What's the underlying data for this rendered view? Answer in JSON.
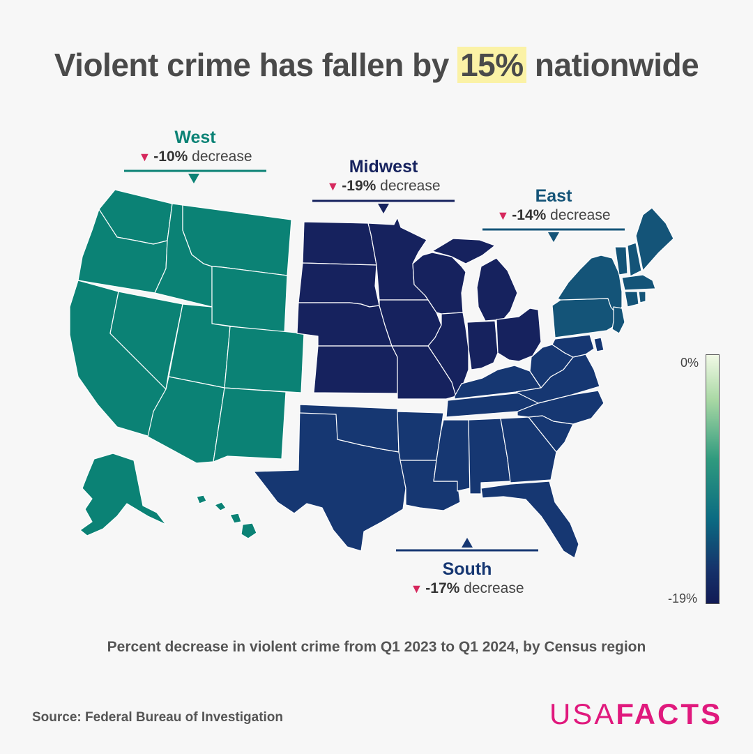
{
  "title": {
    "before": "Violent crime has fallen by ",
    "highlight": "15%",
    "after": " nationwide"
  },
  "regions": {
    "west": {
      "name": "West",
      "value": "-10%",
      "suffix": " decrease",
      "color": "#0b8275"
    },
    "midwest": {
      "name": "Midwest",
      "value": "-19%",
      "suffix": " decrease",
      "color": "#16225e"
    },
    "east": {
      "name": "East",
      "value": "-14%",
      "suffix": " decrease",
      "color": "#145478"
    },
    "south": {
      "name": "South",
      "value": "-17%",
      "suffix": " decrease",
      "color": "#163772"
    }
  },
  "legend": {
    "max_label": "0%",
    "min_label": "-19%"
  },
  "caption": "Percent decrease in violent crime from Q1 2023 to Q1 2024, by Census region",
  "source": "Source: Federal Bureau of Investigation",
  "brand": {
    "part1": "USA",
    "part2": "FACTS",
    "color": "#e0197d"
  },
  "colors": {
    "decrease_marker": "#d6285d",
    "highlight": "#fbf2a6"
  }
}
